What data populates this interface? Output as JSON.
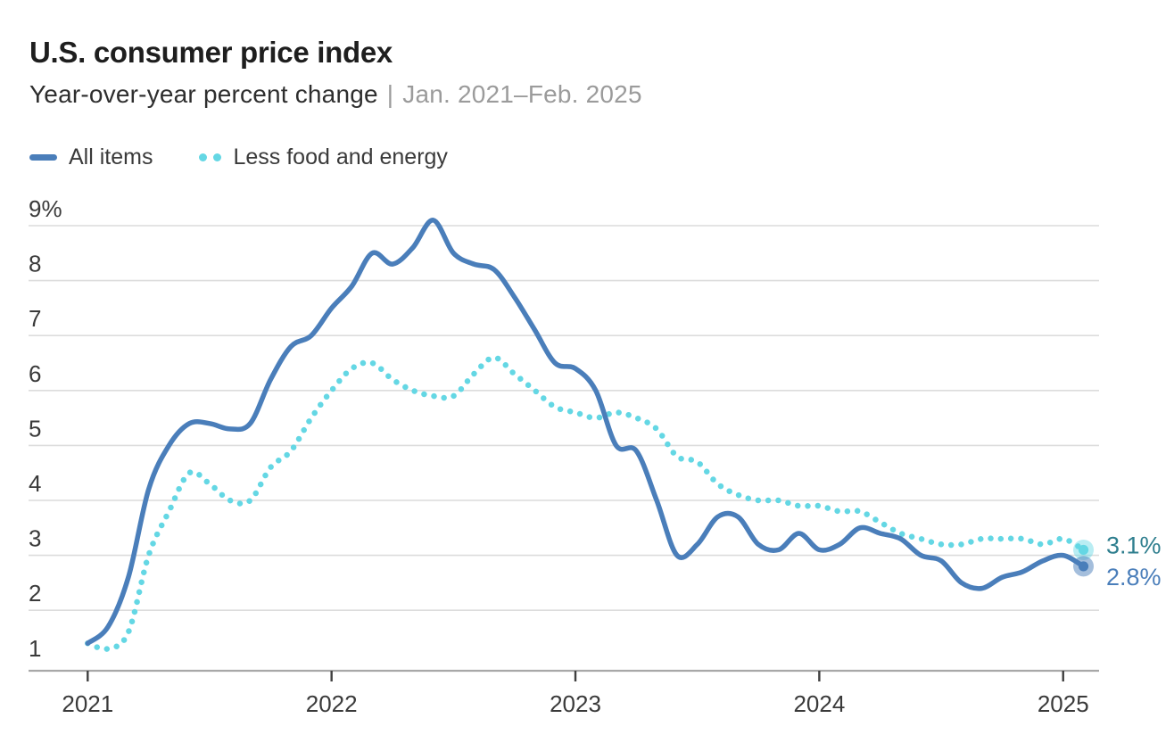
{
  "header": {
    "title": "U.S. consumer price index",
    "subtitle": "Year-over-year percent change",
    "separator": "|",
    "date_range": "Jan. 2021–Feb. 2025"
  },
  "colors": {
    "all_items": "#4a7eba",
    "core": "#64d7e4",
    "end_label_core": "#2e7e8e",
    "end_label_all": "#4a7eba",
    "gridline": "#dcdcdc",
    "axis_line": "#a8a8a8",
    "tick_mark": "#3f3f3f",
    "tick_label": "#3a3a3a"
  },
  "chart_data": {
    "type": "line",
    "title": "U.S. consumer price index",
    "ylabel": "Year-over-year percent change",
    "x_range": "Jan. 2021–Feb. 2025",
    "months_total": 50,
    "ylim": [
      1,
      9
    ],
    "grid": true,
    "legend_position": "top-left",
    "y_ticks": [
      {
        "value": 9,
        "label": "9%",
        "gridline": true
      },
      {
        "value": 8,
        "label": "8",
        "gridline": true
      },
      {
        "value": 7,
        "label": "7",
        "gridline": true
      },
      {
        "value": 6,
        "label": "6",
        "gridline": true
      },
      {
        "value": 5,
        "label": "5",
        "gridline": true
      },
      {
        "value": 4,
        "label": "4",
        "gridline": true
      },
      {
        "value": 3,
        "label": "3",
        "gridline": true
      },
      {
        "value": 2,
        "label": "2",
        "gridline": true
      },
      {
        "value": 1,
        "label": "1",
        "gridline": false
      }
    ],
    "x_ticks": [
      {
        "label": "2021",
        "month": 0
      },
      {
        "label": "2022",
        "month": 12
      },
      {
        "label": "2023",
        "month": 24
      },
      {
        "label": "2024",
        "month": 36
      },
      {
        "label": "2025",
        "month": 48
      }
    ],
    "series": [
      {
        "name": "All items",
        "style": "solid",
        "color": "#4a7eba",
        "end_label": "2.8%",
        "end_label_color": "#4a7eba",
        "values": [
          1.4,
          1.7,
          2.6,
          4.2,
          5.0,
          5.4,
          5.4,
          5.3,
          5.4,
          6.2,
          6.8,
          7.0,
          7.5,
          7.9,
          8.5,
          8.3,
          8.6,
          9.1,
          8.5,
          8.3,
          8.2,
          7.7,
          7.1,
          6.5,
          6.4,
          6.0,
          5.0,
          4.9,
          4.0,
          3.0,
          3.2,
          3.7,
          3.7,
          3.2,
          3.1,
          3.4,
          3.1,
          3.2,
          3.5,
          3.4,
          3.3,
          3.0,
          2.9,
          2.5,
          2.4,
          2.6,
          2.7,
          2.9,
          3.0,
          2.8
        ]
      },
      {
        "name": "Less food and energy",
        "style": "dotted",
        "color": "#64d7e4",
        "end_label": "3.1%",
        "end_label_color": "#2e7e8e",
        "values": [
          1.4,
          1.3,
          1.6,
          3.0,
          3.8,
          4.5,
          4.3,
          4.0,
          4.0,
          4.6,
          4.9,
          5.5,
          6.0,
          6.4,
          6.5,
          6.2,
          6.0,
          5.9,
          5.9,
          6.3,
          6.6,
          6.3,
          6.0,
          5.7,
          5.6,
          5.5,
          5.6,
          5.5,
          5.3,
          4.8,
          4.7,
          4.3,
          4.1,
          4.0,
          4.0,
          3.9,
          3.9,
          3.8,
          3.8,
          3.6,
          3.4,
          3.3,
          3.2,
          3.2,
          3.3,
          3.3,
          3.3,
          3.2,
          3.3,
          3.1
        ]
      }
    ]
  }
}
